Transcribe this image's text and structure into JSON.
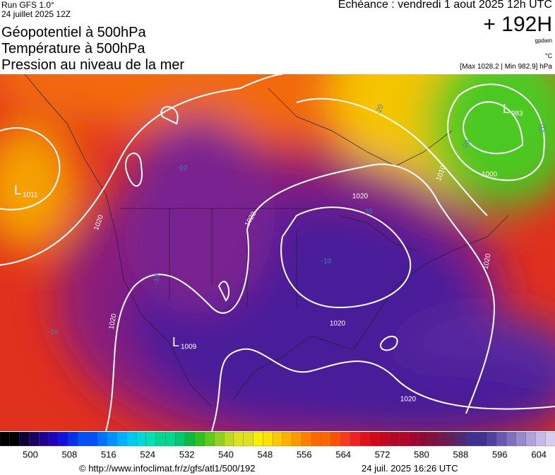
{
  "header": {
    "run": "Run GFS 1.0°",
    "date": "24 juillet 2025 12Z",
    "titles": [
      "Géopotentiel à 500hPa",
      "Température à 500hPa",
      "Pression au niveau de la mer"
    ],
    "echeance": "Echéance : vendredi 1 aout 2025 12h UTC",
    "offset": "+ 192H",
    "unit_gpdam": "gpdam",
    "unit_temp": "°C",
    "range": "[Max 1028.2 | Min 982.9] hPa"
  },
  "map": {
    "labels": [
      "1020",
      "1020",
      "1020",
      "1020",
      "1020",
      "1020",
      "1020",
      "1010",
      "1000",
      "-10",
      "-10",
      "-10",
      "-10",
      "-20",
      "-20",
      "-20",
      "-20"
    ],
    "lows": [
      {
        "mark": "L",
        "value": "1011"
      },
      {
        "mark": "L",
        "value": "983"
      },
      {
        "mark": "L",
        "value": "1009"
      }
    ]
  },
  "colorbar": {
    "ticks": [
      "500",
      "508",
      "516",
      "524",
      "532",
      "540",
      "548",
      "556",
      "564",
      "572",
      "580",
      "588",
      "596",
      "604"
    ]
  },
  "footer": {
    "url": "© http://www.infoclimat.fr/z/gfs/atl1/500/192",
    "timestamp": "24 juil. 2025 16:26 UTC"
  }
}
